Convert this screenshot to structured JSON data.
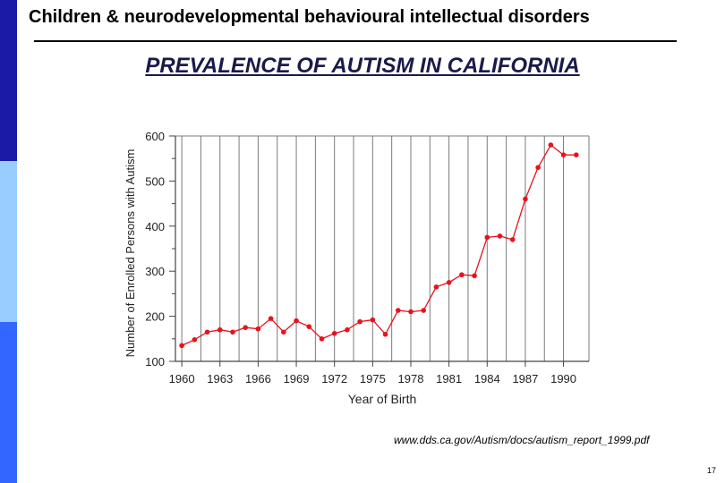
{
  "header": {
    "title": "Children & neurodevelopmental behavioural intellectual disorders"
  },
  "slide": {
    "title": "PREVALENCE OF AUTISM IN CALIFORNIA",
    "source": "www.dds.ca.gov/Autism/docs/autism_report_1999.pdf",
    "page_number": "17"
  },
  "colors": {
    "bar_top": "#1a1aa6",
    "bar_middle": "#99ccff",
    "bar_bottom": "#3366ff",
    "series_line": "#e8121b"
  },
  "chart_data": {
    "type": "line",
    "title": "",
    "xlabel": "Year of Birth",
    "ylabel": "Number of Enrolled Persons with Autism",
    "xlim": [
      1959.5,
      1992
    ],
    "ylim": [
      100,
      600
    ],
    "x_ticks": [
      1960,
      1963,
      1966,
      1969,
      1972,
      1975,
      1978,
      1981,
      1984,
      1987,
      1990
    ],
    "y_ticks": [
      100,
      200,
      300,
      400,
      500,
      600
    ],
    "grid": "vertical",
    "series": [
      {
        "x": [
          1960,
          1961,
          1962,
          1963,
          1964,
          1965,
          1966,
          1967,
          1968,
          1969,
          1970,
          1971,
          1972,
          1973,
          1974,
          1975,
          1976,
          1977,
          1978,
          1979,
          1980,
          1981,
          1982,
          1983,
          1984,
          1985,
          1986,
          1987,
          1988,
          1989,
          1990,
          1991
        ],
        "values": [
          135,
          148,
          165,
          170,
          165,
          175,
          172,
          195,
          165,
          190,
          177,
          150,
          162,
          170,
          188,
          192,
          160,
          213,
          210,
          213,
          265,
          275,
          292,
          290,
          375,
          378,
          370,
          460,
          530,
          580,
          558,
          558
        ]
      }
    ]
  }
}
